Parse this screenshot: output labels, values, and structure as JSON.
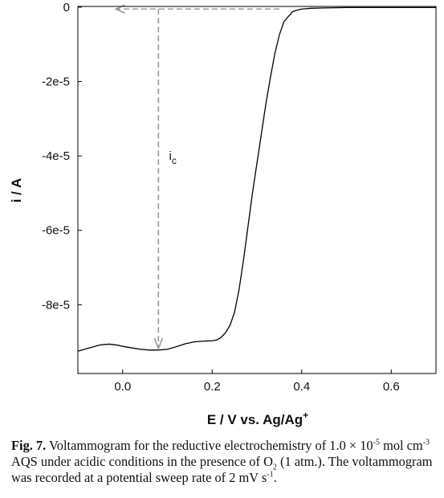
{
  "chart_data": {
    "type": "line",
    "xlabel": "E / V vs. Ag/Ag",
    "xlabel_sup": "+",
    "ylabel": "i / A",
    "xlim": [
      -0.1,
      0.7
    ],
    "ylim": [
      -9.85e-05,
      2e-07
    ],
    "x_ticks": [
      0.0,
      0.2,
      0.4,
      0.6
    ],
    "x_tick_labels": [
      "0.0",
      "0.2",
      "0.4",
      "0.6"
    ],
    "y_ticks": [
      0,
      -2e-05,
      -4e-05,
      -6e-05,
      -8e-05
    ],
    "y_tick_labels": [
      "0",
      "-2e-5",
      "-4e-5",
      "-6e-5",
      "-8e-5"
    ],
    "grid": false,
    "series": [
      {
        "color": "#000000",
        "x": [
          -0.1,
          -0.08,
          -0.05,
          -0.03,
          -0.01,
          0.0,
          0.02,
          0.04,
          0.06,
          0.08,
          0.1,
          0.12,
          0.14,
          0.16,
          0.18,
          0.2,
          0.21,
          0.22,
          0.23,
          0.24,
          0.25,
          0.26,
          0.27,
          0.28,
          0.29,
          0.3,
          0.31,
          0.32,
          0.33,
          0.34,
          0.35,
          0.36,
          0.37,
          0.38,
          0.39,
          0.4,
          0.42,
          0.45,
          0.5,
          0.55,
          0.6,
          0.65,
          0.7
        ],
        "y": [
          -9.25e-05,
          -9.18e-05,
          -9.08e-05,
          -9.06e-05,
          -9.09e-05,
          -9.12e-05,
          -9.16e-05,
          -9.2e-05,
          -9.22e-05,
          -9.22e-05,
          -9.2e-05,
          -9.13e-05,
          -9.05e-05,
          -9e-05,
          -8.98e-05,
          -8.97e-05,
          -8.95e-05,
          -8.88e-05,
          -8.75e-05,
          -8.55e-05,
          -8.2e-05,
          -7.6e-05,
          -6.8e-05,
          -5.9e-05,
          -5e-05,
          -4.2e-05,
          -3.4e-05,
          -2.6e-05,
          -1.9e-05,
          -1.25e-05,
          -7.5e-06,
          -4e-06,
          -2.5e-06,
          -1.2e-06,
          -8e-07,
          -5e-07,
          -3e-07,
          -2e-07,
          -1e-07,
          -1e-07,
          -1e-07,
          -1e-07,
          -1e-07
        ]
      }
    ],
    "annotations": {
      "arrow_left": {
        "from": [
          0.35,
          -5e-07
        ],
        "to": [
          -0.015,
          -5e-07
        ]
      },
      "arrow_down": {
        "from": [
          0.08,
          -5e-07
        ],
        "to": [
          0.08,
          -9.18e-05
        ]
      },
      "label_main": "i",
      "label_sub": "c",
      "label_at": [
        0.1,
        -4e-05
      ]
    }
  },
  "caption": {
    "label": "Fig. 7.",
    "seg1": " Voltammogram for the reductive electrochemistry of 1.0 × 10",
    "sup1": "-5",
    "seg2": " mol cm",
    "sup2": "-3",
    "seg3": " AQS under acidic conditions in the presence of O",
    "sub1": "2",
    "seg4": " (1 atm.). The voltammogram was recorded at a potential sweep rate of 2 mV s",
    "sup3": "-1",
    "seg5": "."
  }
}
